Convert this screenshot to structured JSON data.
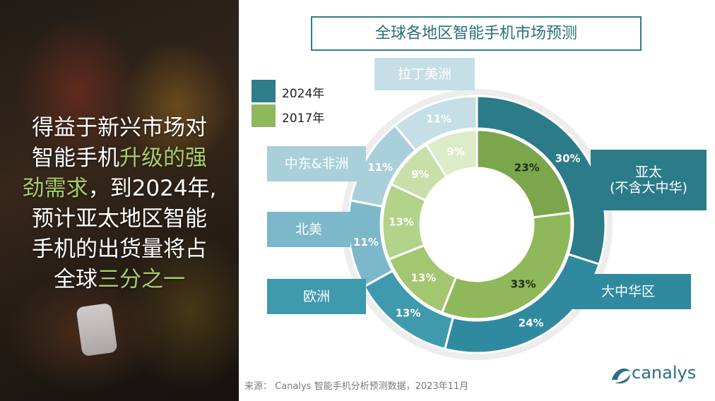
{
  "headline": {
    "line1": "得益于新兴市场对",
    "line2a": "智能手机",
    "line2b": "升级的强",
    "line3a": "劲需求",
    "line3b": "，到2024年,",
    "line4": "预计亚太地区智能",
    "line5": "手机的出货量将占",
    "line6a": "全球",
    "line6b": "三分之一"
  },
  "legend": {
    "items": [
      {
        "label": "2024年",
        "color": "#2e7d8a"
      },
      {
        "label": "2017年",
        "color": "#8fb85a"
      }
    ]
  },
  "regions": [
    {
      "key": "latam",
      "label": "拉丁美洲",
      "color": "#c6dfe6"
    },
    {
      "key": "mea",
      "label": "中东&非洲",
      "color": "#a9cfda"
    },
    {
      "key": "na",
      "label": "北美",
      "color": "#7cb8c9"
    },
    {
      "key": "eu",
      "label": "欧洲",
      "color": "#3f9aae"
    },
    {
      "key": "gc",
      "label": "大中华区",
      "color": "#2f8aa0"
    },
    {
      "key": "apac",
      "label": "亚太",
      "sublabel": "(不含大中华)",
      "color": "#2c7b88"
    }
  ],
  "source": "来源： Canalys 智能手机分析预测数据，2023年11月",
  "logo": {
    "text": "canalys",
    "icon": "canalys-logo-icon"
  },
  "chart_data": {
    "type": "pie",
    "title": "全球各地区智能手机市场预测",
    "categories": [
      "亚太(不含大中华)",
      "大中华区",
      "欧洲",
      "北美",
      "中东&非洲",
      "拉丁美洲"
    ],
    "series": [
      {
        "name": "2024年",
        "values": [
          30,
          24,
          13,
          11,
          11,
          11
        ],
        "ring": "outer",
        "colors": [
          "#2c7b88",
          "#2f8aa0",
          "#3f9aae",
          "#7cb8c9",
          "#a9cfda",
          "#c6dfe6"
        ]
      },
      {
        "name": "2017年",
        "values": [
          23,
          33,
          13,
          13,
          9,
          9
        ],
        "ring": "inner",
        "colors": [
          "#7ba64b",
          "#8fb85a",
          "#a3c671",
          "#b3d28a",
          "#c8dfa9",
          "#dcebc8"
        ]
      }
    ],
    "legend": "top-left"
  }
}
